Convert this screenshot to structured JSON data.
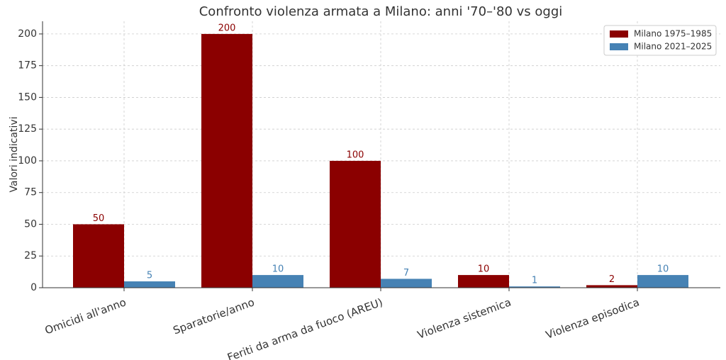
{
  "chart_data": {
    "type": "bar",
    "title": "Confronto violenza armata a Milano: anni '70–'80 vs oggi",
    "y_label": "Valori indicativi",
    "categories": [
      "Omicidi all'anno",
      "Sparatorie/anno",
      "Feriti da arma da fuoco (AREU)",
      "Violenza sistemica",
      "Violenza episodica"
    ],
    "series": [
      {
        "name": "Milano 1975–1985",
        "color": "#8b0000",
        "values": [
          50,
          200,
          100,
          10,
          2
        ]
      },
      {
        "name": "Milano 2021–2025",
        "color": "#4682b4",
        "values": [
          5,
          10,
          7,
          1,
          10
        ]
      }
    ],
    "ylim": [
      0,
      210
    ],
    "yticks": [
      0,
      25,
      50,
      75,
      100,
      125,
      150,
      175,
      200
    ],
    "grid": true,
    "legend": "upper-right"
  }
}
